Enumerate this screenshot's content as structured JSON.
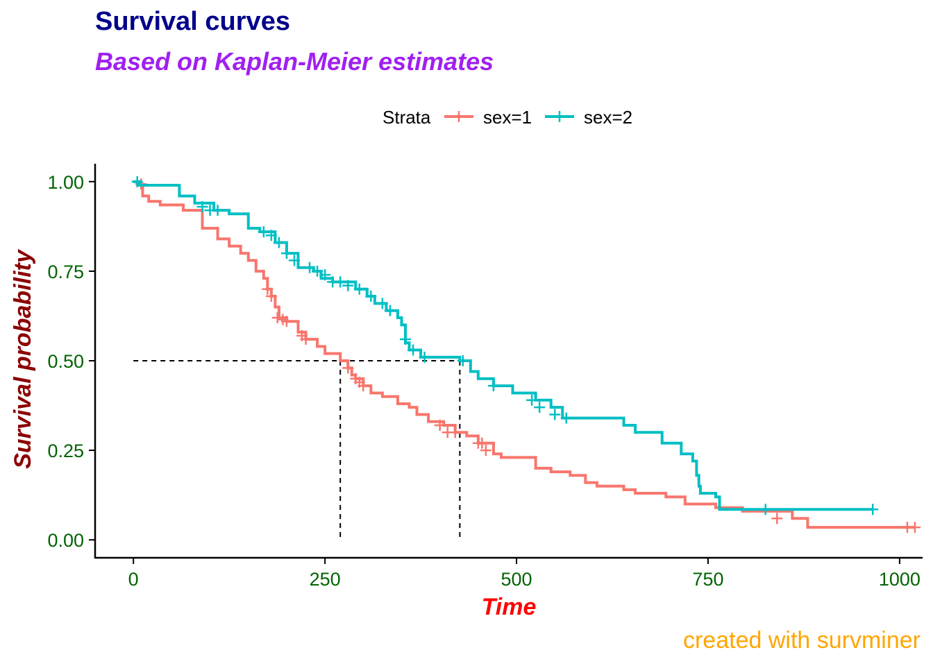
{
  "chart_data": {
    "type": "line",
    "title": "Survival curves",
    "subtitle": "Based on Kaplan-Meier estimates",
    "caption": "created with survminer",
    "xlabel": "Time",
    "ylabel": "Survival probability",
    "xlim": [
      -50,
      1030
    ],
    "ylim": [
      -0.05,
      1.05
    ],
    "xticks": [
      0,
      250,
      500,
      750,
      1000
    ],
    "xtick_labels": [
      "0",
      "250",
      "500",
      "750",
      "1000"
    ],
    "yticks": [
      0,
      0.25,
      0.5,
      0.75,
      1.0
    ],
    "ytick_labels": [
      "0.00",
      "0.25",
      "0.50",
      "0.75",
      "1.00"
    ],
    "grid": false,
    "legend": {
      "title": "Strata",
      "position": "top"
    },
    "colors": {
      "title": "#00008b",
      "subtitle": "#a020f0",
      "xlabel": "#ff0000",
      "ylabel": "#8b0000",
      "ticks": "#006400",
      "caption": "#ffa500"
    },
    "median_lines": [
      {
        "series": "sex=1",
        "time": 270,
        "survival": 0.5
      },
      {
        "series": "sex=2",
        "time": 426,
        "survival": 0.5
      }
    ],
    "series": [
      {
        "name": "sex=1",
        "color": "#f8766d",
        "steps": [
          [
            0,
            1.0
          ],
          [
            5,
            0.993
          ],
          [
            12,
            0.96
          ],
          [
            20,
            0.945
          ],
          [
            35,
            0.935
          ],
          [
            65,
            0.92
          ],
          [
            90,
            0.87
          ],
          [
            110,
            0.84
          ],
          [
            125,
            0.82
          ],
          [
            140,
            0.8
          ],
          [
            150,
            0.78
          ],
          [
            160,
            0.75
          ],
          [
            170,
            0.73
          ],
          [
            175,
            0.7
          ],
          [
            180,
            0.68
          ],
          [
            185,
            0.65
          ],
          [
            190,
            0.62
          ],
          [
            200,
            0.61
          ],
          [
            215,
            0.58
          ],
          [
            225,
            0.56
          ],
          [
            240,
            0.54
          ],
          [
            250,
            0.52
          ],
          [
            270,
            0.5
          ],
          [
            280,
            0.48
          ],
          [
            285,
            0.46
          ],
          [
            290,
            0.45
          ],
          [
            300,
            0.43
          ],
          [
            310,
            0.41
          ],
          [
            325,
            0.4
          ],
          [
            345,
            0.38
          ],
          [
            360,
            0.37
          ],
          [
            370,
            0.35
          ],
          [
            385,
            0.33
          ],
          [
            405,
            0.32
          ],
          [
            420,
            0.3
          ],
          [
            435,
            0.29
          ],
          [
            450,
            0.27
          ],
          [
            470,
            0.24
          ],
          [
            480,
            0.23
          ],
          [
            525,
            0.2
          ],
          [
            545,
            0.19
          ],
          [
            570,
            0.18
          ],
          [
            590,
            0.16
          ],
          [
            605,
            0.15
          ],
          [
            640,
            0.14
          ],
          [
            655,
            0.13
          ],
          [
            695,
            0.12
          ],
          [
            720,
            0.1
          ],
          [
            760,
            0.09
          ],
          [
            795,
            0.08
          ],
          [
            830,
            0.08
          ],
          [
            860,
            0.06
          ],
          [
            880,
            0.035
          ],
          [
            1020,
            0.035
          ]
        ],
        "censors": [
          [
            10,
            0.993
          ],
          [
            175,
            0.7
          ],
          [
            180,
            0.68
          ],
          [
            188,
            0.62
          ],
          [
            195,
            0.615
          ],
          [
            200,
            0.61
          ],
          [
            220,
            0.57
          ],
          [
            225,
            0.56
          ],
          [
            280,
            0.48
          ],
          [
            290,
            0.45
          ],
          [
            295,
            0.44
          ],
          [
            300,
            0.43
          ],
          [
            400,
            0.32
          ],
          [
            410,
            0.3
          ],
          [
            420,
            0.3
          ],
          [
            450,
            0.27
          ],
          [
            455,
            0.27
          ],
          [
            460,
            0.25
          ],
          [
            840,
            0.06
          ],
          [
            1010,
            0.035
          ],
          [
            1020,
            0.035
          ]
        ]
      },
      {
        "name": "sex=2",
        "color": "#00bfc4",
        "steps": [
          [
            0,
            1.0
          ],
          [
            8,
            0.99
          ],
          [
            60,
            0.96
          ],
          [
            80,
            0.94
          ],
          [
            105,
            0.92
          ],
          [
            125,
            0.91
          ],
          [
            150,
            0.87
          ],
          [
            165,
            0.86
          ],
          [
            185,
            0.83
          ],
          [
            200,
            0.8
          ],
          [
            215,
            0.76
          ],
          [
            235,
            0.75
          ],
          [
            245,
            0.73
          ],
          [
            260,
            0.72
          ],
          [
            290,
            0.7
          ],
          [
            305,
            0.68
          ],
          [
            315,
            0.66
          ],
          [
            330,
            0.64
          ],
          [
            345,
            0.62
          ],
          [
            350,
            0.6
          ],
          [
            355,
            0.55
          ],
          [
            360,
            0.53
          ],
          [
            375,
            0.51
          ],
          [
            426,
            0.51
          ],
          [
            426,
            0.5
          ],
          [
            440,
            0.47
          ],
          [
            450,
            0.45
          ],
          [
            470,
            0.43
          ],
          [
            495,
            0.41
          ],
          [
            525,
            0.39
          ],
          [
            545,
            0.37
          ],
          [
            560,
            0.34
          ],
          [
            575,
            0.34
          ],
          [
            590,
            0.34
          ],
          [
            640,
            0.32
          ],
          [
            655,
            0.3
          ],
          [
            690,
            0.27
          ],
          [
            715,
            0.24
          ],
          [
            730,
            0.22
          ],
          [
            735,
            0.18
          ],
          [
            738,
            0.15
          ],
          [
            740,
            0.13
          ],
          [
            760,
            0.12
          ],
          [
            765,
            0.085
          ],
          [
            965,
            0.085
          ]
        ],
        "censors": [
          [
            5,
            1.0
          ],
          [
            90,
            0.93
          ],
          [
            100,
            0.92
          ],
          [
            110,
            0.92
          ],
          [
            170,
            0.86
          ],
          [
            180,
            0.85
          ],
          [
            190,
            0.83
          ],
          [
            200,
            0.8
          ],
          [
            210,
            0.78
          ],
          [
            230,
            0.76
          ],
          [
            240,
            0.75
          ],
          [
            250,
            0.74
          ],
          [
            260,
            0.72
          ],
          [
            270,
            0.72
          ],
          [
            280,
            0.71
          ],
          [
            295,
            0.7
          ],
          [
            310,
            0.68
          ],
          [
            325,
            0.66
          ],
          [
            335,
            0.64
          ],
          [
            355,
            0.56
          ],
          [
            365,
            0.53
          ],
          [
            380,
            0.51
          ],
          [
            430,
            0.5
          ],
          [
            470,
            0.43
          ],
          [
            520,
            0.39
          ],
          [
            530,
            0.37
          ],
          [
            550,
            0.35
          ],
          [
            565,
            0.34
          ],
          [
            825,
            0.085
          ],
          [
            965,
            0.085
          ]
        ]
      }
    ]
  }
}
